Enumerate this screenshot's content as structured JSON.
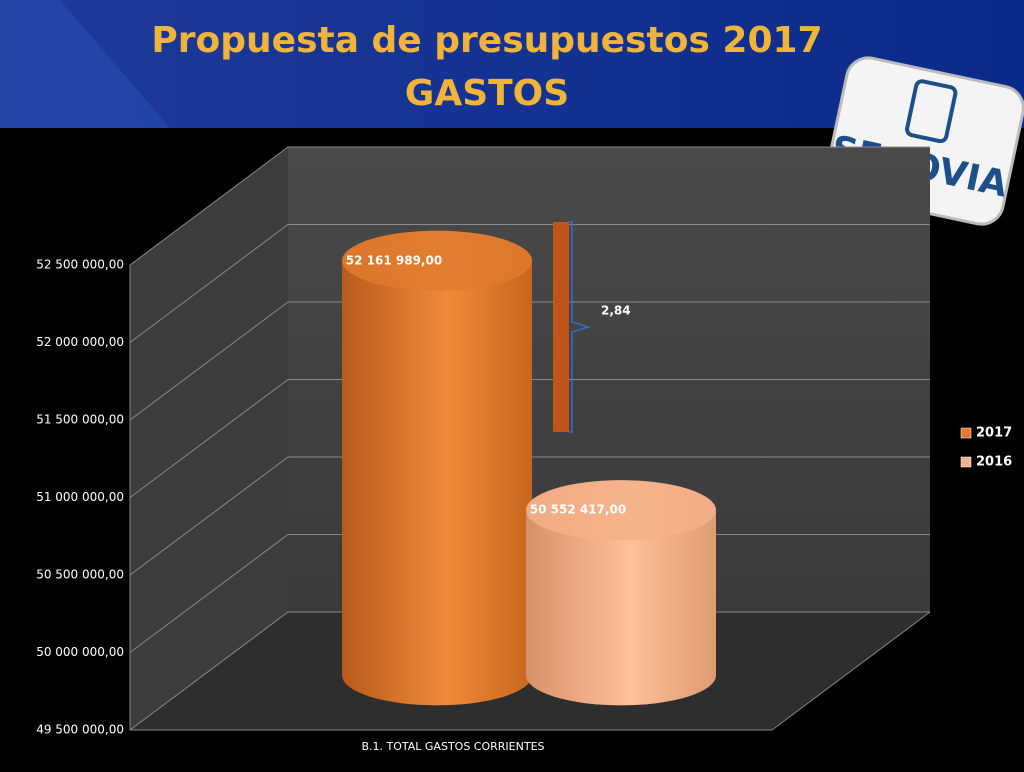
{
  "header": {
    "title_line1": "Propuesta de presupuestos 2017",
    "title_line2": "GASTOS",
    "logo_text": "SEGOVIA"
  },
  "chart_data": {
    "type": "cylinder",
    "categories": [
      "B.1. TOTAL GASTOS CORRIENTES"
    ],
    "series": [
      {
        "name": "2017",
        "color": "#e07a2e",
        "values": [
          52161989
        ],
        "value_labels": [
          "52 161 989,00"
        ]
      },
      {
        "name": "2016",
        "color": "#f4b08a",
        "values": [
          50552417
        ],
        "value_labels": [
          "50 552 417,00"
        ]
      }
    ],
    "annotation": "2,84",
    "ylim": [
      49500000,
      52500000
    ],
    "yticks": [
      {
        "value": 49500000,
        "label": "49 500 000,00"
      },
      {
        "value": 50000000,
        "label": "50 000 000,00"
      },
      {
        "value": 50500000,
        "label": "50 500 000,00"
      },
      {
        "value": 51000000,
        "label": "51 000 000,00"
      },
      {
        "value": 51500000,
        "label": "51 500 000,00"
      },
      {
        "value": 52000000,
        "label": "52 000 000,00"
      },
      {
        "value": 52500000,
        "label": "52 500 000,00"
      }
    ],
    "grid": true,
    "legend": "right"
  }
}
